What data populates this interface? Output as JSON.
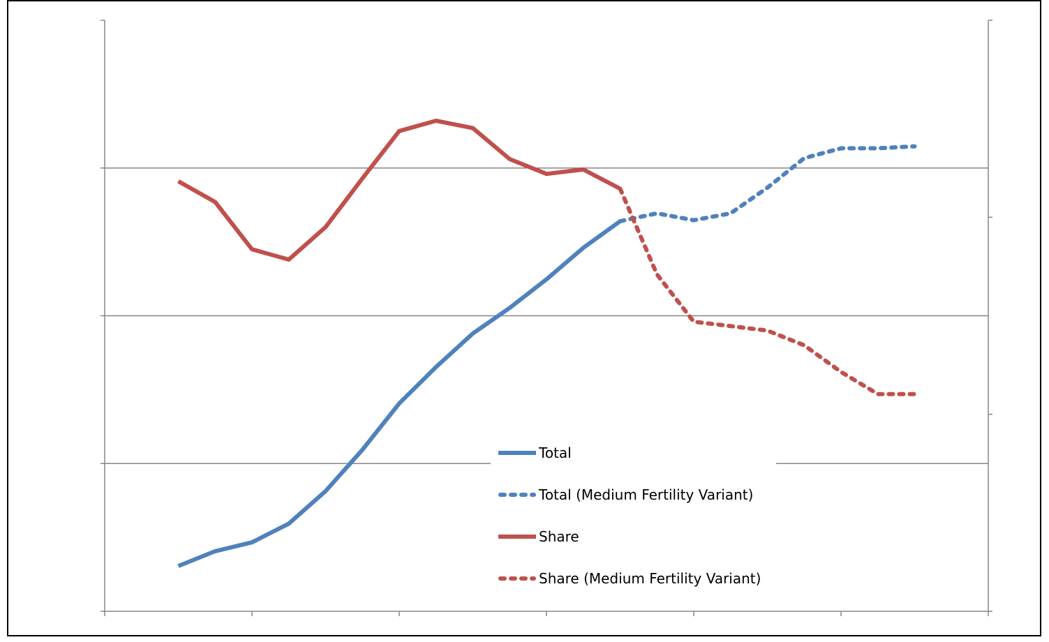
{
  "chart_data": {
    "type": "line",
    "title": "",
    "xlabel": "",
    "ylabel_left": "",
    "ylabel_right": "",
    "x_axis_range": [
      0,
      12
    ],
    "y_left_range": [
      0,
      4
    ],
    "y_right_range": [
      0,
      3
    ],
    "grid": "horizontal",
    "legend_position": "lower-center",
    "colors": {
      "total": "#4f81bd",
      "share": "#c0504d",
      "grid": "#868686",
      "axis": "#868686",
      "frame": "#000000"
    },
    "series": [
      {
        "name": "Total",
        "key": "total",
        "axis": "right",
        "style": "solid",
        "x": [
          1,
          1.5,
          2,
          2.5,
          3,
          3.5,
          4,
          4.5,
          5,
          5.5,
          6,
          6.5,
          7
        ],
        "y": [
          0.23,
          0.305,
          0.35,
          0.445,
          0.61,
          0.82,
          1.055,
          1.24,
          1.41,
          1.54,
          1.685,
          1.845,
          1.98
        ]
      },
      {
        "name": "Total (Medium Fertility Variant)",
        "key": "total",
        "axis": "right",
        "style": "dotted",
        "x": [
          7,
          7.5,
          8,
          8.5,
          9,
          9.5,
          10,
          10.5,
          11
        ],
        "y": [
          1.98,
          2.02,
          1.985,
          2.02,
          2.15,
          2.3,
          2.35,
          2.35,
          2.36
        ]
      },
      {
        "name": "Share",
        "key": "share",
        "axis": "left",
        "style": "solid",
        "x": [
          1,
          1.5,
          2,
          2.5,
          3,
          3.5,
          4,
          4.5,
          5,
          5.5,
          6,
          6.5,
          7
        ],
        "y": [
          2.91,
          2.77,
          2.45,
          2.38,
          2.6,
          2.93,
          3.25,
          3.32,
          3.27,
          3.06,
          2.96,
          2.99,
          2.86
        ]
      },
      {
        "name": "Share (Medium Fertility Variant)",
        "key": "share",
        "axis": "left",
        "style": "dotted",
        "x": [
          7,
          7.5,
          8,
          8.5,
          9,
          9.5,
          10,
          10.5,
          11
        ],
        "y": [
          2.86,
          2.28,
          1.96,
          1.93,
          1.9,
          1.8,
          1.62,
          1.47,
          1.47
        ]
      }
    ]
  }
}
